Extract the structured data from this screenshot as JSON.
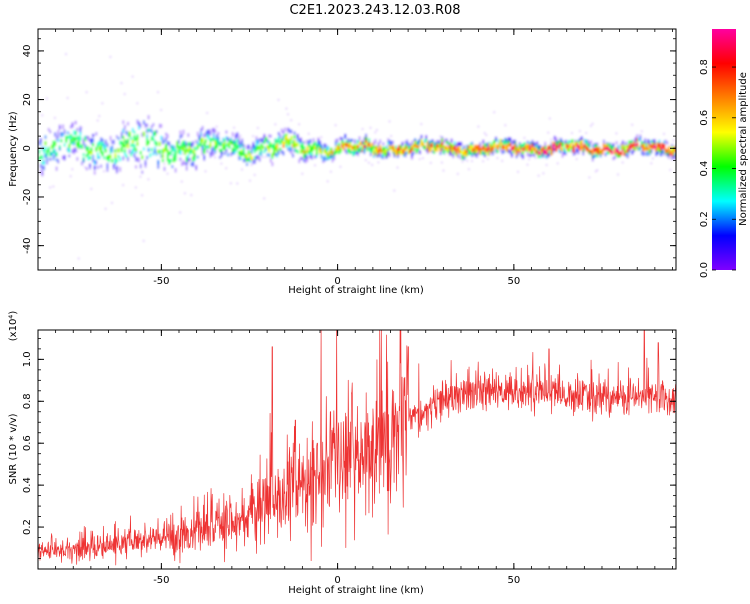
{
  "title": "C2E1.2023.243.12.03.R08",
  "chart_data": [
    {
      "type": "heatmap",
      "xlabel": "Height of straight line (km)",
      "ylabel": "Frequency (Hz)",
      "xlim": [
        -85,
        96
      ],
      "ylim": [
        -50,
        49
      ],
      "xticks": [
        -50,
        0,
        50
      ],
      "yticks": [
        -40,
        -20,
        0,
        20,
        40
      ],
      "colorbar": {
        "label": "Normalized spectral amplitude",
        "range": [
          0,
          0.95
        ],
        "ticks": [
          0.0,
          0.2,
          0.4,
          0.6,
          0.8
        ],
        "colormap": [
          "#7f00ff",
          "#0000ff",
          "#00ffff",
          "#00ff00",
          "#ffff00",
          "#ff8000",
          "#ff0000",
          "#ff00a0"
        ]
      },
      "ridge": {
        "center_frequency_hz": 1,
        "spread_hz": [
          [
            -85,
            7
          ],
          [
            -75,
            6
          ],
          [
            -65,
            7
          ],
          [
            -55,
            9
          ],
          [
            -45,
            6
          ],
          [
            -35,
            5
          ],
          [
            -25,
            4
          ],
          [
            -15,
            5
          ],
          [
            -5,
            3
          ],
          [
            5,
            3
          ],
          [
            15,
            2.5
          ],
          [
            25,
            2.5
          ],
          [
            35,
            2.5
          ],
          [
            45,
            2.5
          ],
          [
            55,
            2.5
          ],
          [
            65,
            2.5
          ],
          [
            75,
            2.5
          ],
          [
            85,
            2.5
          ],
          [
            96,
            2.5
          ]
        ],
        "peak_amplitude": [
          [
            -85,
            0.4
          ],
          [
            -60,
            0.45
          ],
          [
            -30,
            0.45
          ],
          [
            -10,
            0.6
          ],
          [
            10,
            0.7
          ],
          [
            40,
            0.8
          ],
          [
            60,
            0.9
          ],
          [
            96,
            0.85
          ]
        ]
      }
    },
    {
      "type": "line",
      "xlabel": "Height of straight line (km)",
      "ylabel": "SNR (10 * v/v)",
      "y_multiplier": "(x10⁴)",
      "xlim": [
        -85,
        96
      ],
      "ylim": [
        0,
        1.14
      ],
      "xticks": [
        -50,
        0,
        50
      ],
      "yticks": [
        0.2,
        0.4,
        0.6,
        0.8,
        1.0
      ],
      "series_color": "#ee3333",
      "series": [
        {
          "envelope": [
            [
              -85,
              0.08
            ],
            [
              -70,
              0.1
            ],
            [
              -55,
              0.13
            ],
            [
              -40,
              0.18
            ],
            [
              -30,
              0.22
            ],
            [
              -20,
              0.3
            ],
            [
              -10,
              0.4
            ],
            [
              0,
              0.5
            ],
            [
              10,
              0.58
            ],
            [
              20,
              0.7
            ],
            [
              30,
              0.8
            ],
            [
              40,
              0.84
            ],
            [
              50,
              0.85
            ],
            [
              60,
              0.84
            ],
            [
              70,
              0.82
            ],
            [
              80,
              0.82
            ],
            [
              96,
              0.82
            ]
          ],
          "spikes": [
            [
              -18.5,
              1.06
            ],
            [
              -12,
              0.71
            ],
            [
              -2,
              0.75
            ],
            [
              4,
              0.84
            ],
            [
              20,
              1.06
            ],
            [
              60,
              1.05
            ],
            [
              87,
              1.14
            ],
            [
              91,
              1.08
            ]
          ]
        }
      ]
    }
  ]
}
